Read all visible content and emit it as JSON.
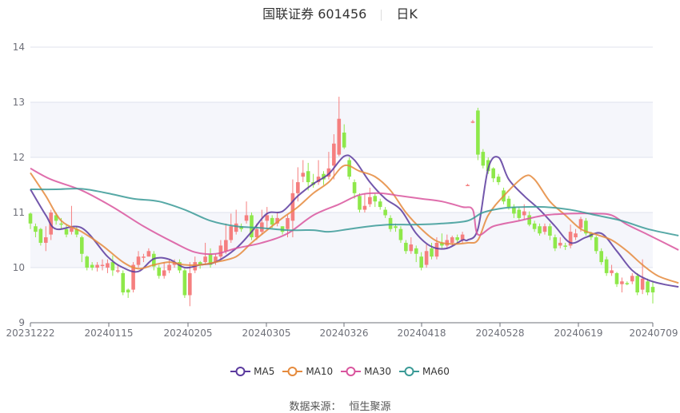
{
  "header": {
    "stock_name": "国联证券 601456",
    "period": "日K"
  },
  "legend": [
    {
      "label": "MA5",
      "color": "#5b3a9e"
    },
    {
      "label": "MA10",
      "color": "#e58a3c"
    },
    {
      "label": "MA30",
      "color": "#d9559e"
    },
    {
      "label": "MA60",
      "color": "#3a9a96"
    }
  ],
  "footer": {
    "source_label": "数据来源：",
    "source_name": "恒生聚源"
  },
  "colors": {
    "up": "#f57f7f",
    "down": "#8ee84a",
    "grid": "#dfe3ec",
    "band": "#f5f6fb",
    "axis": "#6e7079"
  },
  "chart_data": {
    "type": "candlestick",
    "title": "国联证券 601456 日K",
    "xlabel": "",
    "ylabel": "",
    "ylim": [
      9,
      14
    ],
    "yticks": [
      9,
      10,
      11,
      12,
      13,
      14
    ],
    "xticks": [
      "20231222",
      "20240115",
      "20240205",
      "20240305",
      "20240326",
      "20240418",
      "20240528",
      "20240619",
      "20240709"
    ],
    "legend_position": "bottom",
    "grid": true,
    "candles": [
      [
        10.98,
        10.8,
        11.0,
        10.7
      ],
      [
        10.75,
        10.65,
        10.8,
        10.55
      ],
      [
        10.7,
        10.45,
        10.72,
        10.4
      ],
      [
        10.45,
        10.55,
        10.75,
        10.3
      ],
      [
        10.6,
        11.0,
        11.05,
        10.5
      ],
      [
        10.95,
        10.85,
        11.0,
        10.78
      ],
      [
        10.8,
        10.78,
        10.9,
        10.7
      ],
      [
        10.7,
        10.6,
        10.78,
        10.55
      ],
      [
        10.65,
        10.72,
        11.12,
        10.6
      ],
      [
        10.7,
        10.6,
        10.75,
        10.55
      ],
      [
        10.55,
        10.25,
        10.58,
        10.1
      ],
      [
        10.2,
        10.0,
        10.22,
        9.95
      ],
      [
        10.05,
        10.0,
        10.1,
        9.95
      ],
      [
        10.0,
        10.05,
        10.1,
        9.93
      ],
      [
        10.05,
        10.05,
        10.15,
        9.95
      ],
      [
        10.0,
        10.08,
        10.15,
        9.9
      ],
      [
        10.1,
        9.95,
        10.22,
        9.85
      ],
      [
        9.95,
        9.95,
        10.05,
        9.9
      ],
      [
        9.9,
        9.55,
        9.95,
        9.5
      ],
      [
        9.6,
        9.55,
        9.62,
        9.45
      ],
      [
        9.6,
        10.05,
        10.1,
        9.55
      ],
      [
        10.05,
        10.2,
        10.3,
        10.0
      ],
      [
        10.2,
        10.2,
        10.25,
        10.1
      ],
      [
        10.2,
        10.3,
        10.35,
        10.2
      ],
      [
        10.25,
        10.02,
        10.3,
        9.95
      ],
      [
        10.0,
        9.85,
        10.05,
        9.8
      ],
      [
        9.85,
        9.95,
        10.1,
        9.8
      ],
      [
        9.95,
        10.05,
        10.15,
        9.9
      ],
      [
        10.05,
        10.1,
        10.15,
        10.0
      ],
      [
        10.1,
        9.95,
        10.15,
        9.9
      ],
      [
        9.95,
        9.5,
        9.98,
        9.45
      ],
      [
        9.5,
        9.9,
        10.1,
        9.3
      ],
      [
        9.95,
        10.1,
        10.2,
        9.9
      ],
      [
        10.1,
        10.05,
        10.12,
        9.98
      ],
      [
        10.1,
        10.2,
        10.45,
        10.05
      ],
      [
        10.25,
        10.05,
        10.35,
        10.0
      ],
      [
        10.1,
        10.2,
        10.25,
        10.05
      ],
      [
        10.2,
        10.4,
        10.5,
        10.15
      ],
      [
        10.3,
        10.5,
        10.8,
        10.25
      ],
      [
        10.5,
        10.75,
        10.98,
        10.45
      ],
      [
        10.65,
        10.8,
        11.05,
        10.6
      ],
      [
        10.75,
        10.7,
        10.8,
        10.65
      ],
      [
        10.85,
        10.95,
        11.2,
        10.8
      ],
      [
        10.95,
        10.55,
        11.0,
        10.5
      ],
      [
        10.55,
        10.7,
        10.8,
        10.5
      ],
      [
        10.65,
        10.82,
        11.05,
        10.6
      ],
      [
        10.85,
        10.95,
        11.1,
        10.7
      ],
      [
        10.9,
        10.78,
        10.95,
        10.72
      ],
      [
        10.8,
        10.9,
        11.0,
        10.75
      ],
      [
        10.75,
        10.65,
        10.75,
        10.6
      ],
      [
        10.7,
        10.9,
        10.95,
        10.55
      ],
      [
        10.85,
        11.35,
        11.6,
        10.55
      ],
      [
        11.35,
        11.55,
        11.82,
        11.2
      ],
      [
        11.65,
        11.72,
        11.95,
        11.55
      ],
      [
        11.75,
        11.55,
        11.9,
        11.4
      ],
      [
        11.55,
        11.5,
        11.7,
        11.45
      ],
      [
        11.55,
        11.65,
        11.95,
        11.5
      ],
      [
        11.7,
        11.6,
        11.75,
        11.5
      ],
      [
        11.65,
        11.8,
        12.1,
        11.6
      ],
      [
        11.85,
        12.25,
        12.42,
        11.6
      ],
      [
        12.05,
        12.7,
        13.1,
        12.02
      ],
      [
        12.45,
        12.18,
        12.6,
        12.15
      ],
      [
        11.95,
        11.65,
        12.0,
        11.6
      ],
      [
        11.55,
        11.35,
        11.6,
        11.25
      ],
      [
        11.3,
        11.05,
        11.35,
        11.0
      ],
      [
        11.05,
        11.12,
        11.35,
        11.0
      ],
      [
        11.15,
        11.28,
        11.45,
        11.1
      ],
      [
        11.3,
        11.2,
        11.35,
        11.1
      ],
      [
        11.2,
        11.1,
        11.25,
        11.05
      ],
      [
        11.05,
        10.95,
        11.1,
        10.9
      ],
      [
        10.9,
        10.7,
        10.95,
        10.65
      ],
      [
        10.75,
        10.72,
        10.8,
        10.65
      ],
      [
        10.7,
        10.5,
        10.75,
        10.45
      ],
      [
        10.45,
        10.3,
        10.5,
        10.25
      ],
      [
        10.3,
        10.42,
        10.55,
        10.25
      ],
      [
        10.35,
        10.25,
        10.4,
        10.1
      ],
      [
        10.2,
        10.0,
        10.28,
        9.95
      ],
      [
        10.05,
        10.3,
        10.42,
        10.0
      ],
      [
        10.35,
        10.2,
        10.45,
        10.15
      ],
      [
        10.2,
        10.45,
        10.55,
        10.15
      ],
      [
        10.45,
        10.4,
        10.62,
        10.35
      ],
      [
        10.4,
        10.5,
        10.6,
        10.35
      ],
      [
        10.45,
        10.55,
        10.58,
        10.4
      ],
      [
        10.55,
        10.5,
        10.6,
        10.45
      ],
      [
        10.5,
        10.6,
        10.65,
        10.45
      ],
      [
        11.5,
        11.5,
        11.52,
        11.48
      ],
      [
        12.65,
        12.65,
        12.68,
        12.62
      ],
      [
        12.85,
        12.05,
        12.9,
        11.95
      ],
      [
        12.1,
        11.85,
        12.15,
        11.8
      ],
      [
        11.95,
        11.75,
        12.0,
        11.7
      ],
      [
        11.8,
        11.62,
        11.82,
        11.55
      ],
      [
        11.65,
        11.55,
        11.7,
        11.5
      ],
      [
        11.4,
        11.2,
        11.45,
        11.15
      ],
      [
        11.25,
        11.1,
        11.3,
        11.05
      ],
      [
        11.1,
        10.98,
        11.15,
        10.9
      ],
      [
        11.05,
        10.9,
        11.1,
        10.85
      ],
      [
        10.95,
        11.02,
        11.15,
        10.88
      ],
      [
        10.95,
        10.78,
        11.02,
        10.75
      ],
      [
        10.8,
        10.7,
        10.85,
        10.65
      ],
      [
        10.75,
        10.62,
        10.8,
        10.58
      ],
      [
        10.65,
        10.75,
        10.8,
        10.6
      ],
      [
        10.75,
        10.58,
        10.8,
        10.5
      ],
      [
        10.55,
        10.35,
        10.6,
        10.3
      ],
      [
        10.4,
        10.45,
        10.55,
        10.35
      ],
      [
        10.4,
        10.38,
        10.45,
        10.32
      ],
      [
        10.4,
        10.65,
        10.78,
        10.35
      ],
      [
        10.55,
        10.62,
        10.7,
        10.5
      ],
      [
        10.72,
        10.88,
        10.92,
        10.65
      ],
      [
        10.85,
        10.62,
        10.9,
        10.58
      ],
      [
        10.62,
        10.55,
        10.65,
        10.5
      ],
      [
        10.55,
        10.3,
        10.58,
        10.25
      ],
      [
        10.3,
        10.1,
        10.35,
        10.05
      ],
      [
        10.15,
        9.9,
        10.2,
        9.85
      ],
      [
        9.9,
        9.95,
        10.05,
        9.85
      ],
      [
        9.9,
        9.7,
        9.92,
        9.65
      ],
      [
        9.7,
        9.75,
        9.82,
        9.55
      ],
      [
        9.72,
        9.7,
        9.75,
        9.68
      ],
      [
        9.75,
        9.85,
        9.9,
        9.7
      ],
      [
        9.85,
        9.55,
        9.9,
        9.5
      ],
      [
        9.6,
        9.8,
        10.15,
        9.52
      ],
      [
        9.75,
        9.55,
        9.8,
        9.5
      ],
      [
        9.65,
        9.55,
        9.75,
        9.35
      ]
    ],
    "series": [
      {
        "name": "MA5",
        "color": "#5b3a9e",
        "points": [
          [
            0,
            11.42
          ],
          [
            3,
            10.95
          ],
          [
            5,
            10.7
          ],
          [
            10,
            10.72
          ],
          [
            15,
            10.2
          ],
          [
            18,
            10.0
          ],
          [
            21,
            9.93
          ],
          [
            24,
            10.16
          ],
          [
            27,
            10.15
          ],
          [
            30,
            10.0
          ],
          [
            33,
            10.05
          ],
          [
            36,
            10.1
          ],
          [
            40,
            10.35
          ],
          [
            43,
            10.65
          ],
          [
            46,
            10.98
          ],
          [
            49,
            11.02
          ],
          [
            52,
            11.3
          ],
          [
            55,
            11.52
          ],
          [
            58,
            11.7
          ],
          [
            61,
            12.02
          ],
          [
            63,
            11.95
          ],
          [
            66,
            11.55
          ],
          [
            69,
            11.25
          ],
          [
            72,
            11.05
          ],
          [
            75,
            10.62
          ],
          [
            78,
            10.38
          ],
          [
            81,
            10.35
          ],
          [
            84,
            10.5
          ],
          [
            85,
            10.5
          ],
          [
            87,
            10.7
          ],
          [
            89,
            11.8
          ],
          [
            91,
            12.0
          ],
          [
            93,
            11.6
          ],
          [
            96,
            11.3
          ],
          [
            99,
            11.05
          ],
          [
            102,
            10.75
          ],
          [
            105,
            10.45
          ],
          [
            108,
            10.55
          ],
          [
            111,
            10.62
          ],
          [
            114,
            10.3
          ],
          [
            117,
            9.95
          ],
          [
            120,
            9.78
          ],
          [
            123,
            9.7
          ],
          [
            126,
            9.65
          ]
        ]
      },
      {
        "name": "MA10",
        "color": "#e58a3c",
        "points": [
          [
            0,
            11.72
          ],
          [
            3,
            11.3
          ],
          [
            6,
            10.85
          ],
          [
            10,
            10.65
          ],
          [
            14,
            10.4
          ],
          [
            18,
            10.1
          ],
          [
            21,
            9.98
          ],
          [
            24,
            10.05
          ],
          [
            27,
            10.1
          ],
          [
            30,
            10.05
          ],
          [
            33,
            10.05
          ],
          [
            36,
            10.1
          ],
          [
            40,
            10.2
          ],
          [
            43,
            10.45
          ],
          [
            46,
            10.68
          ],
          [
            49,
            10.9
          ],
          [
            52,
            11.1
          ],
          [
            55,
            11.35
          ],
          [
            58,
            11.55
          ],
          [
            61,
            11.85
          ],
          [
            64,
            11.75
          ],
          [
            67,
            11.65
          ],
          [
            70,
            11.4
          ],
          [
            73,
            11.0
          ],
          [
            76,
            10.7
          ],
          [
            79,
            10.48
          ],
          [
            82,
            10.43
          ],
          [
            85,
            10.45
          ],
          [
            87,
            10.5
          ],
          [
            89,
            10.95
          ],
          [
            92,
            11.3
          ],
          [
            96,
            11.65
          ],
          [
            98,
            11.6
          ],
          [
            101,
            11.2
          ],
          [
            104,
            10.95
          ],
          [
            107,
            10.7
          ],
          [
            110,
            10.6
          ],
          [
            113,
            10.5
          ],
          [
            116,
            10.3
          ],
          [
            119,
            10.05
          ],
          [
            122,
            9.85
          ],
          [
            126,
            9.72
          ]
        ]
      },
      {
        "name": "MA30",
        "color": "#d9559e",
        "points": [
          [
            0,
            11.8
          ],
          [
            4,
            11.6
          ],
          [
            10,
            11.4
          ],
          [
            16,
            11.1
          ],
          [
            22,
            10.75
          ],
          [
            28,
            10.45
          ],
          [
            32,
            10.28
          ],
          [
            36,
            10.25
          ],
          [
            40,
            10.35
          ],
          [
            45,
            10.45
          ],
          [
            50,
            10.62
          ],
          [
            55,
            10.95
          ],
          [
            60,
            11.15
          ],
          [
            64,
            11.32
          ],
          [
            68,
            11.35
          ],
          [
            72,
            11.3
          ],
          [
            76,
            11.25
          ],
          [
            80,
            11.2
          ],
          [
            84,
            11.1
          ],
          [
            86,
            11.05
          ],
          [
            87,
            10.6
          ],
          [
            90,
            10.75
          ],
          [
            95,
            10.85
          ],
          [
            100,
            10.95
          ],
          [
            105,
            10.98
          ],
          [
            110,
            10.98
          ],
          [
            113,
            10.95
          ],
          [
            116,
            10.78
          ],
          [
            120,
            10.6
          ],
          [
            126,
            10.32
          ]
        ]
      },
      {
        "name": "MA60",
        "color": "#3a9a96",
        "points": [
          [
            0,
            11.42
          ],
          [
            5,
            11.42
          ],
          [
            10,
            11.43
          ],
          [
            15,
            11.35
          ],
          [
            20,
            11.25
          ],
          [
            25,
            11.2
          ],
          [
            30,
            11.05
          ],
          [
            35,
            10.85
          ],
          [
            40,
            10.75
          ],
          [
            45,
            10.72
          ],
          [
            50,
            10.68
          ],
          [
            55,
            10.68
          ],
          [
            58,
            10.65
          ],
          [
            62,
            10.7
          ],
          [
            66,
            10.75
          ],
          [
            70,
            10.78
          ],
          [
            75,
            10.78
          ],
          [
            80,
            10.8
          ],
          [
            85,
            10.85
          ],
          [
            88,
            11.0
          ],
          [
            92,
            11.08
          ],
          [
            96,
            11.1
          ],
          [
            100,
            11.1
          ],
          [
            105,
            11.05
          ],
          [
            110,
            10.95
          ],
          [
            115,
            10.85
          ],
          [
            120,
            10.7
          ],
          [
            126,
            10.58
          ]
        ]
      }
    ]
  }
}
